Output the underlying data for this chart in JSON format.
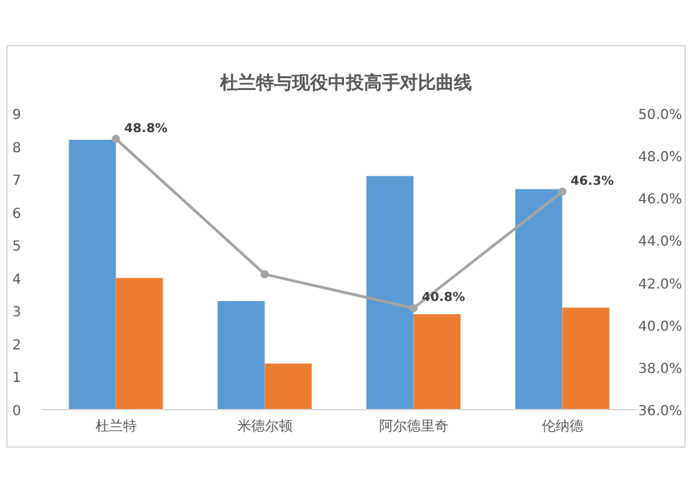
{
  "chart_data": {
    "type": "bar",
    "title": "杜兰特与现役中投高手对比曲线",
    "categories": [
      "杜兰特",
      "米德尔顿",
      "阿尔德里奇",
      "伦纳德"
    ],
    "series": [
      {
        "color": "#5b9bd5",
        "values": [
          8.2,
          3.3,
          7.1,
          6.7
        ]
      },
      {
        "color": "#ed7d31",
        "values": [
          4.0,
          1.4,
          2.9,
          3.1
        ]
      },
      {
        "type": "line",
        "axis": "y2",
        "color": "#a5a5a5",
        "marker": "circle",
        "values": [
          48.8,
          42.4,
          40.8,
          46.3
        ],
        "value_labels": [
          "48.8%",
          null,
          "40.8%",
          "46.3%"
        ]
      }
    ],
    "ylim": [
      0,
      9
    ],
    "yticks": [
      0,
      1,
      2,
      3,
      4,
      5,
      6,
      7,
      8,
      9
    ],
    "y2lim": [
      36,
      50
    ],
    "y2ticks": [
      {
        "value": 36,
        "label": "36.0%"
      },
      {
        "value": 38,
        "label": "38.0%"
      },
      {
        "value": 40,
        "label": "40.0%"
      },
      {
        "value": 42,
        "label": "42.0%"
      },
      {
        "value": 44,
        "label": "44.0%"
      },
      {
        "value": 46,
        "label": "46.0%"
      },
      {
        "value": 48,
        "label": "48.0%"
      },
      {
        "value": 50,
        "label": "50.0%"
      }
    ],
    "grid": false
  }
}
